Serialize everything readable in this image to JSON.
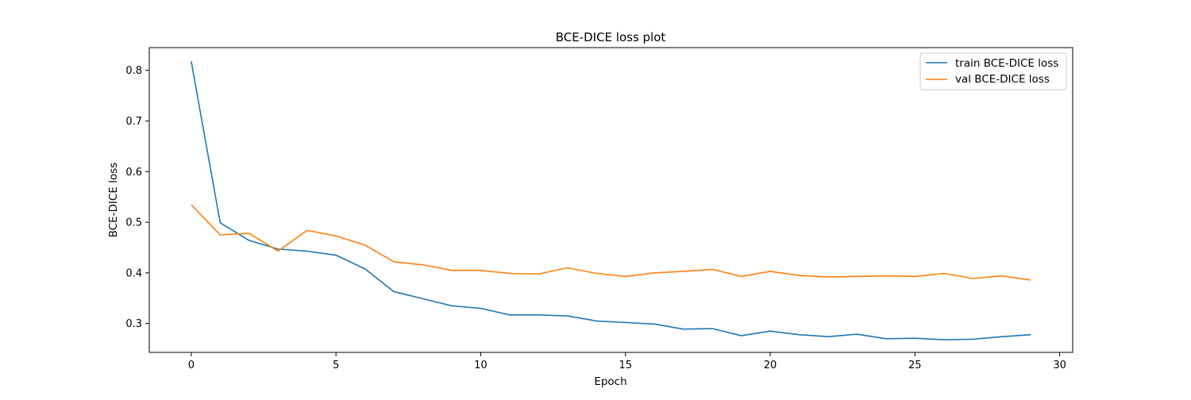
{
  "chart_data": {
    "type": "line",
    "title": "BCE-DICE loss plot",
    "xlabel": "Epoch",
    "ylabel": "BCE-DICE loss",
    "xlim": [
      -1.45,
      30.45
    ],
    "ylim": [
      0.243,
      0.845
    ],
    "xticks": [
      0,
      5,
      10,
      15,
      20,
      25,
      30
    ],
    "yticks": [
      0.3,
      0.4,
      0.5,
      0.6,
      0.7,
      0.8
    ],
    "grid": false,
    "legend_position": "top-right",
    "x": [
      0,
      1,
      2,
      3,
      4,
      5,
      6,
      7,
      8,
      9,
      10,
      11,
      12,
      13,
      14,
      15,
      16,
      17,
      18,
      19,
      20,
      21,
      22,
      23,
      24,
      25,
      26,
      27,
      28,
      29
    ],
    "series": [
      {
        "name": "train BCE-DICE loss",
        "color": "#1f77b4",
        "values": [
          0.818,
          0.499,
          0.464,
          0.447,
          0.443,
          0.435,
          0.408,
          0.363,
          0.349,
          0.335,
          0.33,
          0.317,
          0.317,
          0.315,
          0.305,
          0.302,
          0.299,
          0.289,
          0.29,
          0.276,
          0.285,
          0.278,
          0.274,
          0.279,
          0.27,
          0.271,
          0.268,
          0.269,
          0.274,
          0.278
        ]
      },
      {
        "name": "val BCE-DICE loss",
        "color": "#ff7f0e",
        "values": [
          0.535,
          0.475,
          0.478,
          0.443,
          0.484,
          0.473,
          0.455,
          0.422,
          0.416,
          0.405,
          0.405,
          0.399,
          0.398,
          0.41,
          0.399,
          0.393,
          0.4,
          0.403,
          0.407,
          0.393,
          0.403,
          0.395,
          0.392,
          0.393,
          0.394,
          0.393,
          0.399,
          0.389,
          0.394,
          0.386
        ]
      }
    ]
  }
}
